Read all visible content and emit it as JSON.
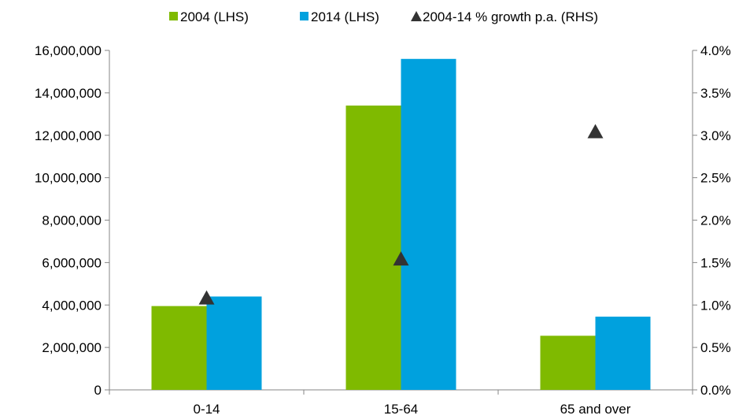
{
  "chart_data": {
    "type": "bar",
    "categories": [
      "0-14",
      "15-64",
      "65 and over"
    ],
    "series": [
      {
        "name": "2004 (LHS)",
        "type": "bar",
        "axis": "left",
        "color": "#7FBA00",
        "values": [
          3950000,
          13400000,
          2550000
        ]
      },
      {
        "name": "2014 (LHS)",
        "type": "bar",
        "axis": "left",
        "color": "#00A1DE",
        "values": [
          4400000,
          15600000,
          3450000
        ]
      },
      {
        "name": "2004-14 % growth p.a. (RHS)",
        "type": "scatter",
        "marker": "triangle",
        "axis": "right",
        "color": "#333333",
        "values": [
          1.08,
          1.54,
          3.04
        ]
      }
    ],
    "y_left": {
      "min": 0,
      "max": 16000000,
      "ticks": [
        0,
        2000000,
        4000000,
        6000000,
        8000000,
        10000000,
        12000000,
        14000000,
        16000000
      ],
      "tick_labels": [
        "0",
        "2,000,000",
        "4,000,000",
        "6,000,000",
        "8,000,000",
        "10,000,000",
        "12,000,000",
        "14,000,000",
        "16,000,000"
      ]
    },
    "y_right": {
      "min": 0,
      "max": 4.0,
      "ticks": [
        0,
        0.5,
        1.0,
        1.5,
        2.0,
        2.5,
        3.0,
        3.5,
        4.0
      ],
      "tick_labels": [
        "0.0%",
        "0.5%",
        "1.0%",
        "1.5%",
        "2.0%",
        "2.5%",
        "3.0%",
        "3.5%",
        "4.0%"
      ]
    },
    "legend_position": "top",
    "grid": false
  }
}
